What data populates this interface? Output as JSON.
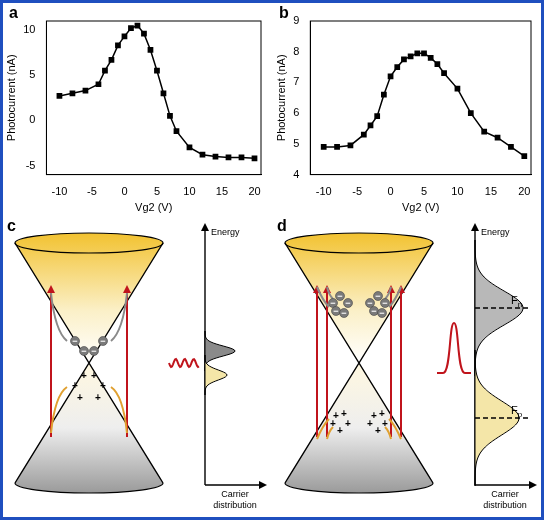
{
  "chart_data": [
    {
      "label": "a",
      "type": "line",
      "x_label": "Vg2 (V)",
      "y_label": "Photocurrent (nA)",
      "x": [
        -10,
        -8,
        -6,
        -4,
        -3,
        -2,
        -1,
        0,
        1,
        2,
        3,
        4,
        5,
        6,
        7,
        8,
        10,
        12,
        14,
        16,
        18,
        20
      ],
      "values": [
        2.7,
        3.0,
        3.3,
        4.0,
        5.5,
        6.7,
        8.3,
        9.3,
        10.2,
        10.5,
        9.6,
        7.8,
        5.5,
        3.0,
        0.5,
        -1.2,
        -3.0,
        -3.8,
        -4.0,
        -4.1,
        -4.1,
        -4.2
      ],
      "color": "#000000",
      "marker": "square",
      "line_style": "solid",
      "xlim": [
        -12,
        21
      ],
      "xticks": [
        -10,
        -5,
        0,
        5,
        10,
        15,
        20
      ],
      "ylim": [
        -6,
        11
      ],
      "yticks": [
        -5,
        0,
        5,
        10
      ],
      "grid": false
    },
    {
      "label": "b",
      "type": "line",
      "x_label": "Vg2 (V)",
      "y_label": "Photocurrent (nA)",
      "x": [
        -10,
        -8,
        -6,
        -4,
        -3,
        -2,
        -1,
        0,
        1,
        2,
        3,
        4,
        5,
        6,
        7,
        8,
        10,
        12,
        14,
        16,
        18,
        20
      ],
      "values": [
        4.9,
        4.9,
        4.95,
        5.3,
        5.6,
        5.9,
        6.6,
        7.2,
        7.5,
        7.75,
        7.85,
        7.95,
        7.95,
        7.8,
        7.6,
        7.3,
        6.8,
        6.0,
        5.4,
        5.2,
        4.9,
        4.6
      ],
      "color": "#000000",
      "marker": "square",
      "line_style": "solid",
      "xlim": [
        -12,
        21
      ],
      "xticks": [
        -10,
        -5,
        0,
        5,
        10,
        15,
        20
      ],
      "ylim": [
        4,
        9
      ],
      "yticks": [
        4,
        5,
        6,
        7,
        8,
        9
      ],
      "grid": false
    }
  ],
  "diagrams": [
    {
      "label": "c",
      "y_axis": "Energy",
      "x_axis": "Carrier distribution",
      "electron_symbol": "−",
      "hole_symbol": "+"
    },
    {
      "label": "d",
      "y_axis": "Energy",
      "x_axis": "Carrier distribution",
      "electron_symbol": "−",
      "hole_symbol": "+",
      "levels": [
        "Fn",
        "Fp"
      ]
    }
  ]
}
